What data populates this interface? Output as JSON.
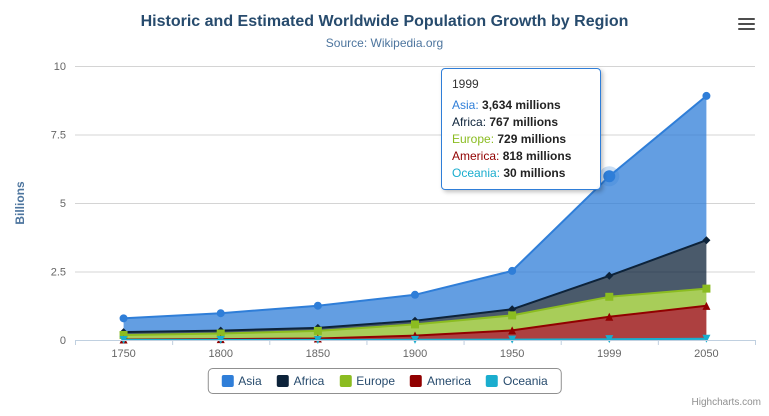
{
  "title": "Historic and Estimated Worldwide Population Growth by Region",
  "subtitle": "Source: Wikipedia.org",
  "credits": "Highcharts.com",
  "chart_data": {
    "type": "area",
    "stacking": "normal",
    "title": "Historic and Estimated Worldwide Population Growth by Region",
    "subtitle": "Source: Wikipedia.org",
    "categories": [
      "1750",
      "1800",
      "1850",
      "1900",
      "1950",
      "1999",
      "2050"
    ],
    "xlabel": "",
    "ylabel": "Billions",
    "ylim": [
      0,
      10
    ],
    "yticks": [
      0,
      2.5,
      5,
      7.5,
      10
    ],
    "grid": true,
    "legend_position": "bottom",
    "unit": "millions",
    "series": [
      {
        "name": "Asia",
        "color": "#2f7ed8",
        "marker": "circle",
        "values": [
          502,
          635,
          809,
          947,
          1402,
          3634,
          5268
        ]
      },
      {
        "name": "Africa",
        "color": "#0d233a",
        "marker": "diamond",
        "values": [
          106,
          107,
          111,
          133,
          221,
          767,
          1766
        ]
      },
      {
        "name": "Europe",
        "color": "#8bbc21",
        "marker": "square",
        "values": [
          163,
          203,
          276,
          408,
          547,
          729,
          628
        ]
      },
      {
        "name": "America",
        "color": "#910000",
        "marker": "triangle",
        "values": [
          18,
          31,
          54,
          156,
          339,
          818,
          1201
        ]
      },
      {
        "name": "Oceania",
        "color": "#1aadce",
        "marker": "triangle-down",
        "values": [
          2,
          2,
          2,
          6,
          13,
          30,
          46
        ]
      }
    ]
  },
  "tooltip": {
    "header": "1999",
    "hover_series": "Asia",
    "hover_index": 5,
    "rows": [
      {
        "name": "Asia",
        "value": "3,634 millions"
      },
      {
        "name": "Africa",
        "value": "767 millions"
      },
      {
        "name": "Europe",
        "value": "729 millions"
      },
      {
        "name": "America",
        "value": "818 millions"
      },
      {
        "name": "Oceania",
        "value": "30 millions"
      }
    ]
  }
}
